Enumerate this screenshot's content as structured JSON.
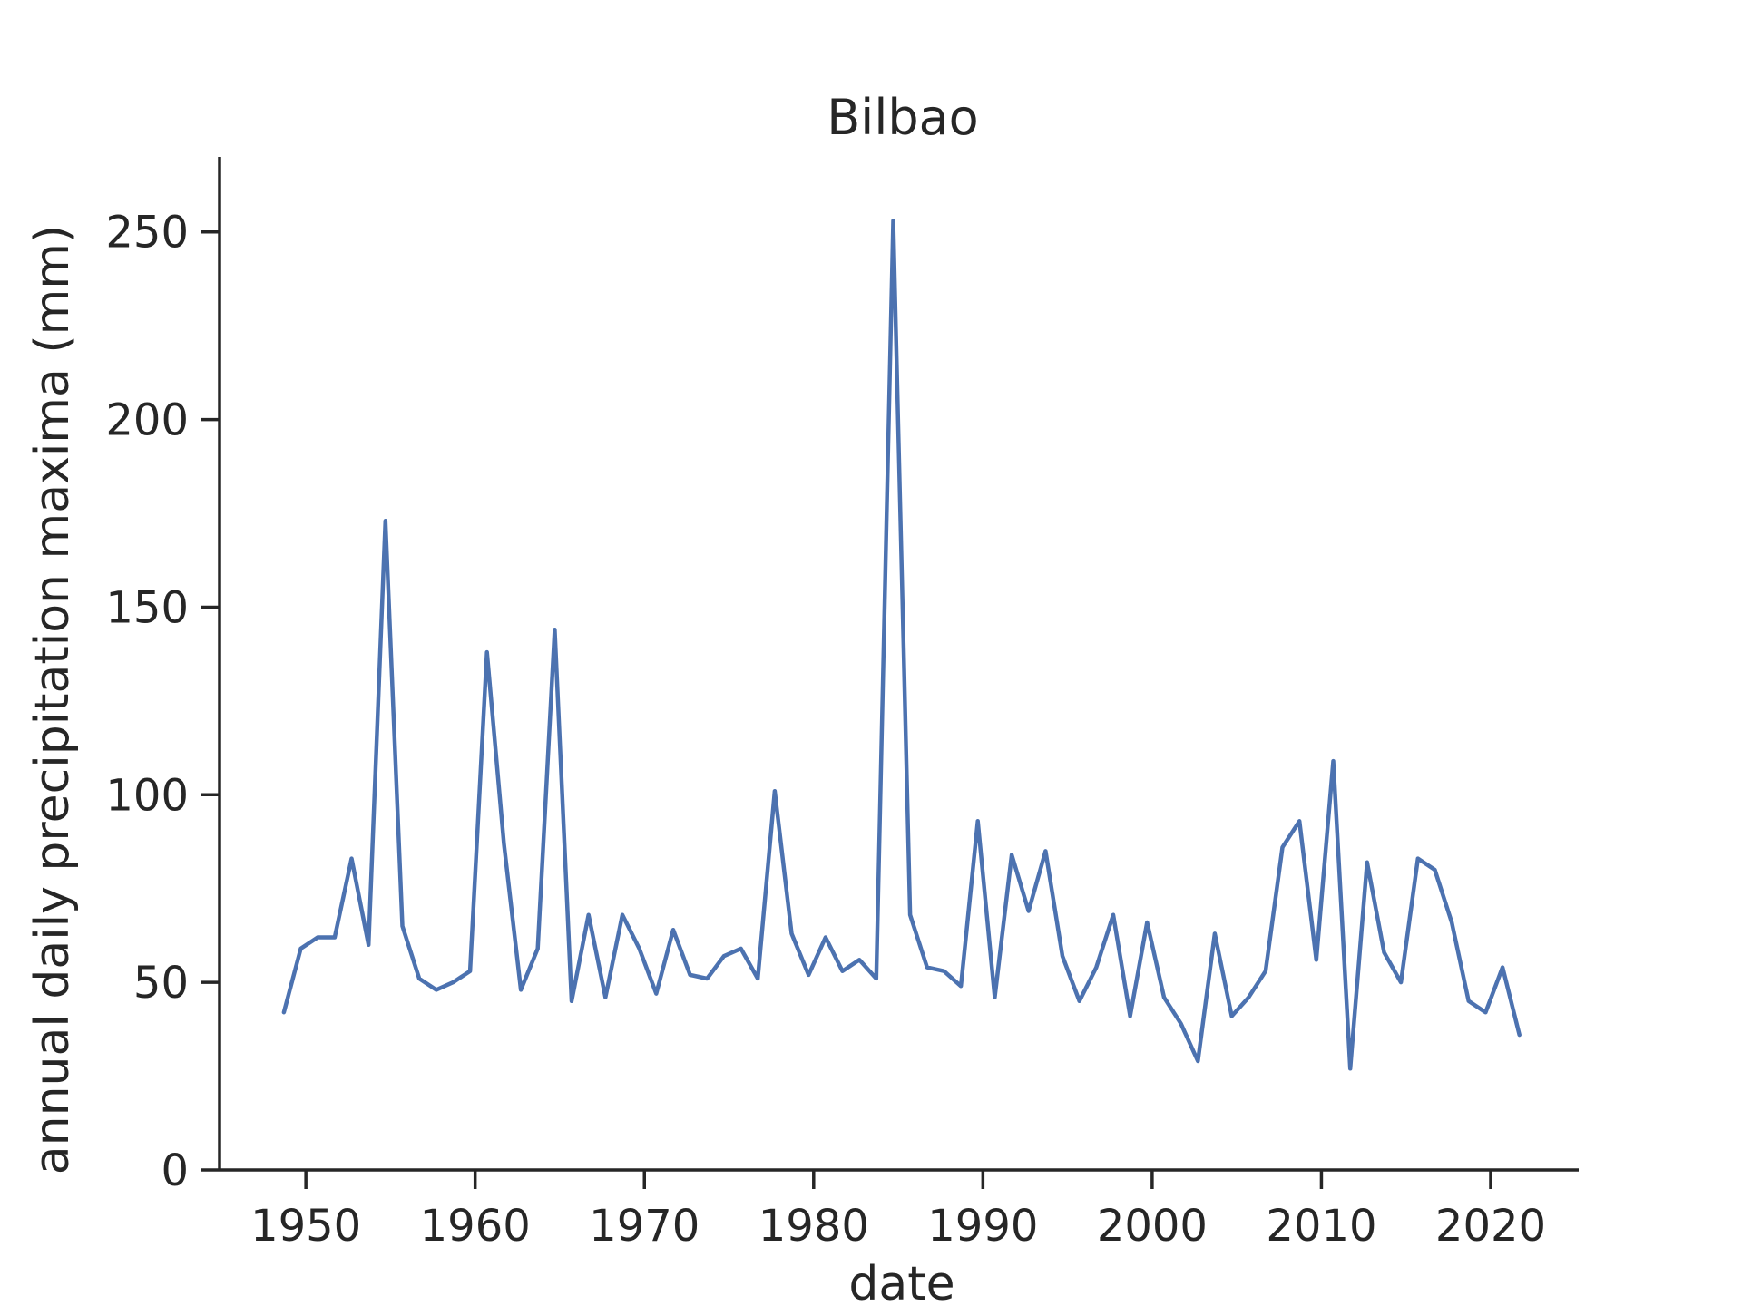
{
  "chart_data": {
    "type": "line",
    "title": "Bilbao",
    "xlabel": "date",
    "ylabel": "annual daily precipitation maxima (mm)",
    "xlim": [
      1944.9,
      2025.2
    ],
    "ylim": [
      0,
      270
    ],
    "xticks": [
      1950,
      1960,
      1970,
      1980,
      1990,
      2000,
      2010,
      2020
    ],
    "yticks": [
      0,
      50,
      100,
      150,
      200,
      250
    ],
    "grid": false,
    "legend": "none",
    "series": [
      {
        "color": "#4c72b0",
        "x": [
          1948.7,
          1949.7,
          1950.7,
          1951.7,
          1952.7,
          1953.7,
          1954.7,
          1955.7,
          1956.7,
          1957.7,
          1958.7,
          1959.7,
          1960.7,
          1961.7,
          1962.7,
          1963.7,
          1964.7,
          1965.7,
          1966.7,
          1967.7,
          1968.7,
          1969.7,
          1970.7,
          1971.7,
          1972.7,
          1973.7,
          1974.7,
          1975.7,
          1976.7,
          1977.7,
          1978.7,
          1979.7,
          1980.7,
          1981.7,
          1982.7,
          1983.7,
          1984.7,
          1985.7,
          1986.7,
          1987.7,
          1988.7,
          1989.7,
          1990.7,
          1991.7,
          1992.7,
          1993.7,
          1994.7,
          1995.7,
          1996.7,
          1997.7,
          1998.7,
          1999.7,
          2000.7,
          2001.7,
          2002.7,
          2003.7,
          2004.7,
          2005.7,
          2006.7,
          2007.7,
          2008.7,
          2009.7,
          2010.7,
          2011.7,
          2012.7,
          2013.7,
          2014.7,
          2015.7,
          2016.7,
          2017.7,
          2018.7,
          2019.7,
          2020.7,
          2021.7
        ],
        "y": [
          42,
          59,
          62,
          62,
          83,
          60,
          173,
          65,
          51,
          48,
          50,
          53,
          138,
          87,
          48,
          59,
          144,
          45,
          68,
          46,
          68,
          59,
          47,
          64,
          52,
          51,
          57,
          59,
          51,
          101,
          63,
          52,
          62,
          53,
          56,
          51,
          253,
          68,
          54,
          53,
          49,
          93,
          46,
          84,
          69,
          85,
          57,
          45,
          54,
          68,
          41,
          66,
          46,
          39,
          29,
          63,
          41,
          46,
          53,
          86,
          93,
          56,
          109,
          27,
          82,
          58,
          50,
          83,
          80,
          66,
          45,
          42,
          54,
          36
        ]
      }
    ]
  }
}
